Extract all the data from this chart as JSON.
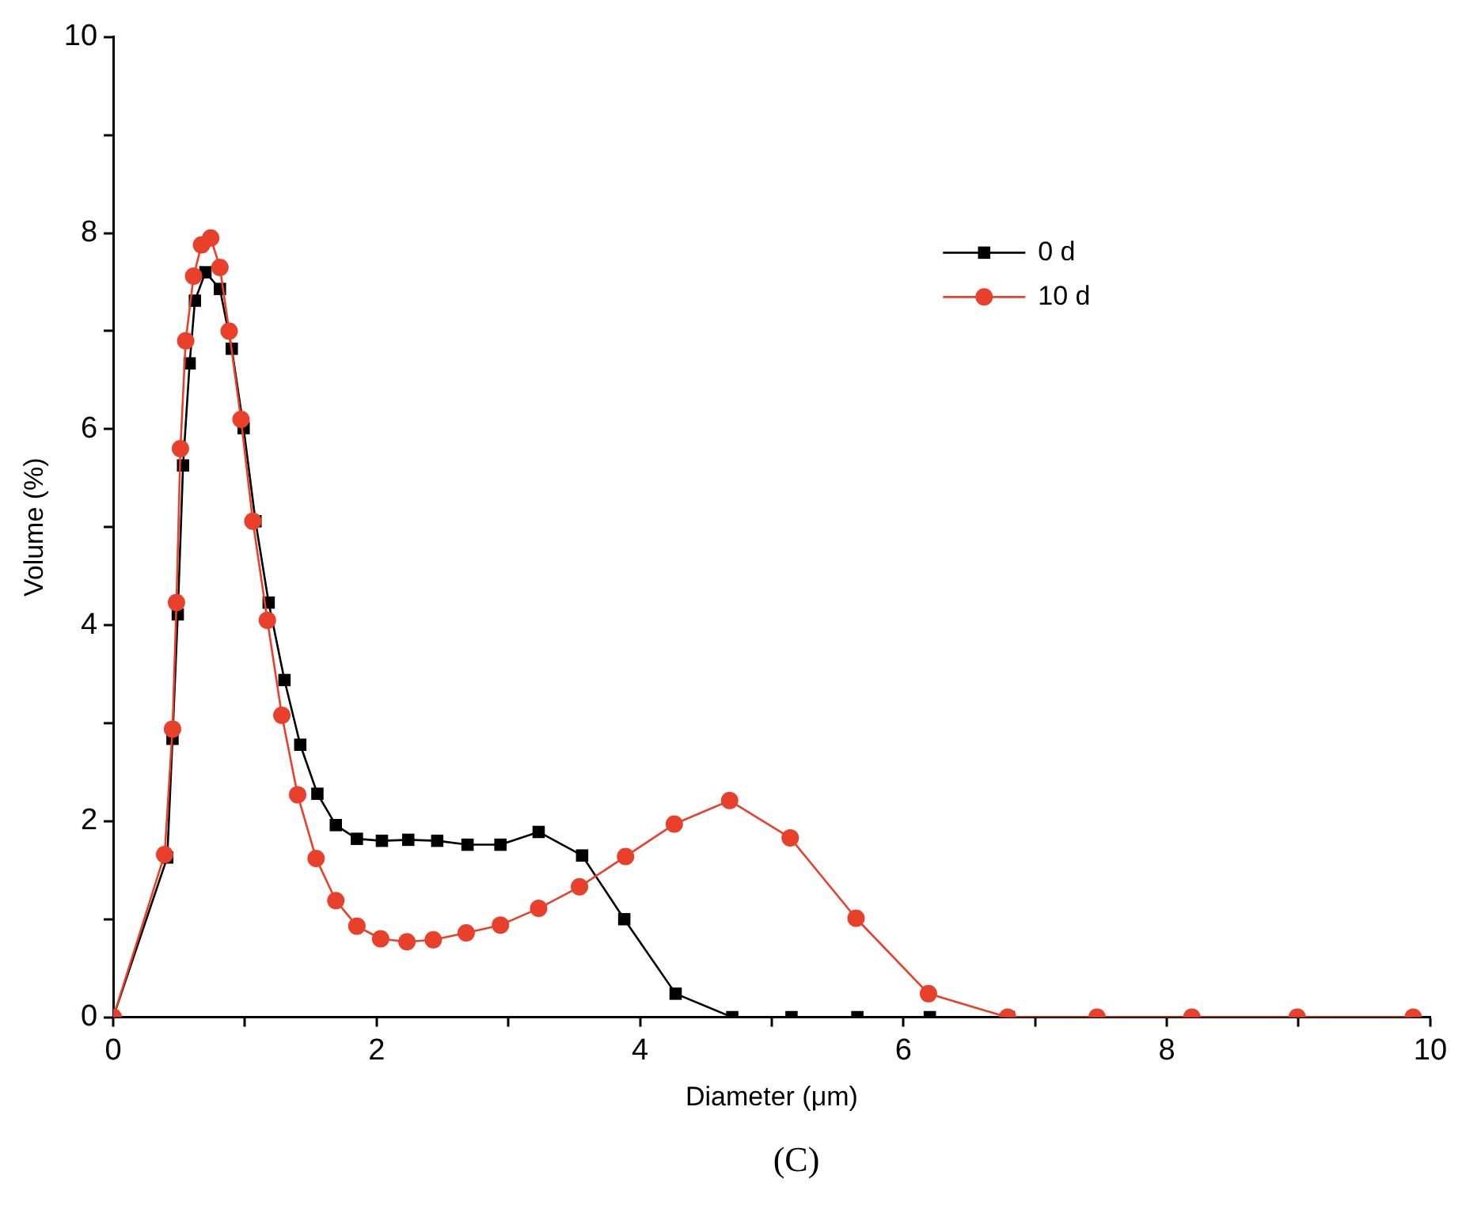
{
  "chart_data": {
    "type": "line",
    "xlabel": "Diameter (μm)",
    "ylabel": "Volume (%)",
    "annotations": [
      "(C)"
    ],
    "xlim": [
      0,
      10
    ],
    "ylim": [
      0,
      10
    ],
    "xticks": [
      0,
      {
        "value": 1,
        "label": null
      },
      2,
      {
        "value": 3,
        "label": null
      },
      4,
      {
        "value": 5,
        "label": null
      },
      6,
      {
        "value": 7,
        "label": null
      },
      8,
      {
        "value": 9,
        "label": null
      },
      10
    ],
    "yticks": [
      0,
      {
        "value": 1,
        "label": null
      },
      2,
      {
        "value": 3,
        "label": null
      },
      4,
      {
        "value": 5,
        "label": null
      },
      6,
      {
        "value": 7,
        "label": null
      },
      8,
      {
        "value": 9,
        "label": null
      },
      10
    ],
    "grid": false,
    "legend": "top right",
    "line_style": "solid",
    "series": [
      {
        "name": "0 d",
        "color": "#000000",
        "marker": "square",
        "x": [
          0,
          0.41,
          0.45,
          0.49,
          0.53,
          0.58,
          0.62,
          0.7,
          0.81,
          0.9,
          0.99,
          1.08,
          1.18,
          1.3,
          1.42,
          1.55,
          1.69,
          1.85,
          2.04,
          2.24,
          2.46,
          2.69,
          2.94,
          3.23,
          3.56,
          3.88,
          4.27,
          4.7,
          5.15,
          5.65,
          6.2,
          6.8,
          7.47,
          8.19,
          8.99,
          9.87
        ],
        "values": [
          0,
          1.63,
          2.84,
          4.11,
          5.63,
          6.67,
          7.31,
          7.6,
          7.43,
          6.82,
          6.01,
          5.06,
          4.23,
          3.44,
          2.78,
          2.28,
          1.96,
          1.82,
          1.8,
          1.81,
          1.8,
          1.76,
          1.76,
          1.89,
          1.65,
          1.0,
          0.24,
          0,
          0,
          0,
          0,
          0,
          0,
          0,
          0,
          0
        ]
      },
      {
        "name": "10 d",
        "color": "#e8402a",
        "marker": "circle",
        "x": [
          0,
          0.39,
          0.45,
          0.48,
          0.51,
          0.55,
          0.61,
          0.67,
          0.74,
          0.81,
          0.88,
          0.97,
          1.06,
          1.17,
          1.28,
          1.4,
          1.54,
          1.69,
          1.85,
          2.03,
          2.23,
          2.43,
          2.68,
          2.94,
          3.23,
          3.54,
          3.89,
          4.26,
          4.68,
          5.14,
          5.64,
          6.19,
          6.79,
          7.47,
          8.19,
          8.99,
          9.87
        ],
        "values": [
          0,
          1.66,
          2.94,
          4.23,
          5.8,
          6.9,
          7.56,
          7.88,
          7.95,
          7.65,
          7.0,
          6.1,
          5.06,
          4.05,
          3.08,
          2.27,
          1.62,
          1.19,
          0.93,
          0.8,
          0.77,
          0.79,
          0.86,
          0.94,
          1.11,
          1.33,
          1.64,
          1.97,
          2.21,
          1.83,
          1.01,
          0.24,
          0,
          0,
          0,
          0,
          0
        ]
      }
    ]
  }
}
